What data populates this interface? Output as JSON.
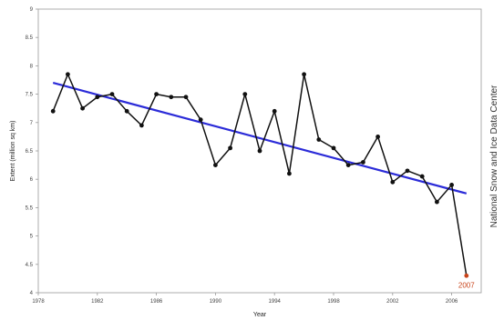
{
  "chart_data": {
    "type": "line",
    "xlabel": "Year",
    "ylabel": "Extent (million sq km)",
    "xlim": [
      1978,
      2008
    ],
    "ylim": [
      4,
      9
    ],
    "x_ticks": [
      1978,
      1982,
      1986,
      1990,
      1994,
      1998,
      2002,
      2006
    ],
    "x_tick_labels": [
      "1978",
      "1982",
      "1986",
      "1990",
      "1994",
      "1998",
      "2002",
      "2006"
    ],
    "y_ticks": [
      4,
      4.5,
      5,
      5.5,
      6,
      6.5,
      7,
      7.5,
      8,
      8.5,
      9
    ],
    "y_tick_labels": [
      "4",
      "4.5",
      "5",
      "5.5",
      "6",
      "6.5",
      "7",
      "7.5",
      "8",
      "8.5",
      "9"
    ],
    "series": [
      {
        "x": [
          1979,
          1980,
          1981,
          1982,
          1983,
          1984,
          1985,
          1986,
          1987,
          1988,
          1989,
          1990,
          1991,
          1992,
          1993,
          1994,
          1995,
          1996,
          1997,
          1998,
          1999,
          2000,
          2001,
          2002,
          2003,
          2004,
          2005,
          2006,
          2007
        ],
        "y": [
          7.2,
          7.85,
          7.25,
          7.45,
          7.5,
          7.2,
          6.95,
          7.5,
          7.45,
          7.45,
          7.05,
          6.25,
          6.55,
          7.5,
          6.5,
          7.2,
          6.1,
          7.85,
          6.7,
          6.55,
          6.25,
          6.3,
          6.75,
          5.95,
          6.15,
          6.05,
          5.6,
          5.9,
          4.3
        ],
        "color": "#111111"
      }
    ],
    "trend": {
      "x": [
        1979,
        2007
      ],
      "y": [
        7.7,
        5.75
      ],
      "color": "#2b2bd8"
    },
    "highlight": {
      "label": "2007",
      "x": 2007,
      "y": 4.3,
      "color": "#c8431a"
    },
    "side_text": "National Snow and Ice Data Center",
    "grid": false,
    "legend": "none"
  }
}
